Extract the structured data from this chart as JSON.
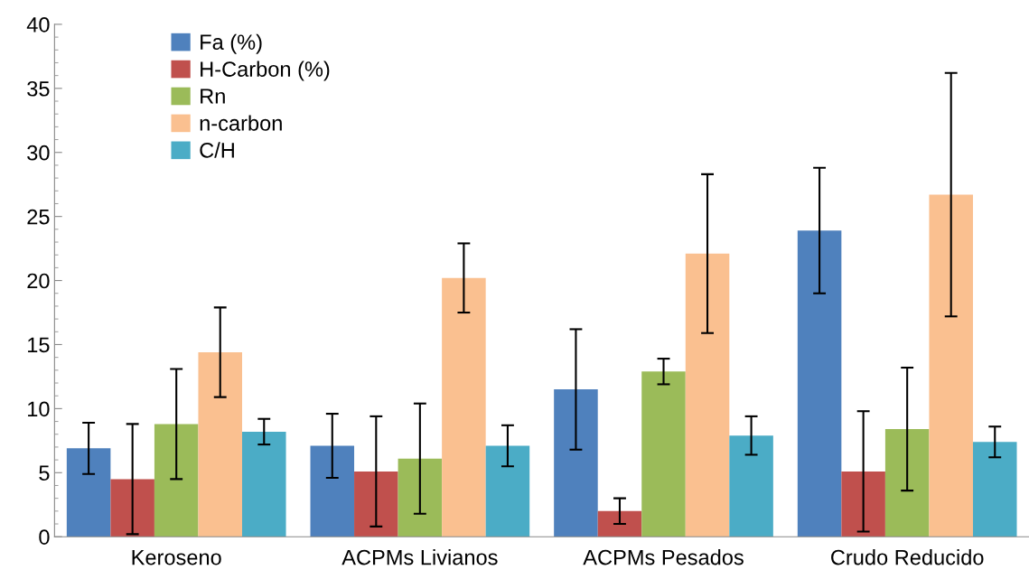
{
  "chart_data": {
    "type": "bar",
    "categories": [
      "Keroseno",
      "ACPMs Livianos",
      "ACPMs Pesados",
      "Crudo Reducido"
    ],
    "series": [
      {
        "name": "Fa (%)",
        "color": "#4f81bd",
        "values": [
          6.9,
          7.1,
          11.5,
          23.9
        ],
        "errors": [
          2.0,
          2.5,
          4.7,
          4.9
        ]
      },
      {
        "name": "H-Carbon (%)",
        "color": "#c0504d",
        "values": [
          4.5,
          5.1,
          2.0,
          5.1
        ],
        "errors": [
          4.3,
          4.3,
          1.0,
          4.7
        ]
      },
      {
        "name": "Rn",
        "color": "#9bbb59",
        "values": [
          8.8,
          6.1,
          12.9,
          8.4
        ],
        "errors": [
          4.3,
          4.3,
          1.0,
          4.8
        ]
      },
      {
        "name": "n-carbon",
        "color": "#fac090",
        "values": [
          14.4,
          20.2,
          22.1,
          26.7
        ],
        "errors": [
          3.5,
          2.7,
          6.2,
          9.5
        ]
      },
      {
        "name": "C/H",
        "color": "#4bacc6",
        "values": [
          8.2,
          7.1,
          7.9,
          7.4
        ],
        "errors": [
          1.0,
          1.6,
          1.5,
          1.2
        ]
      }
    ],
    "ylim": [
      0,
      40
    ],
    "yticks": [
      0,
      5,
      10,
      15,
      20,
      25,
      30,
      35,
      40
    ],
    "grid": false,
    "legend": "top left"
  }
}
